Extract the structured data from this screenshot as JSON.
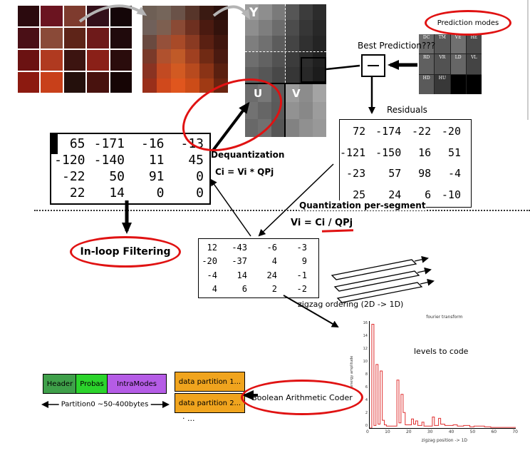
{
  "labels": {
    "prediction_modes": "Prediction modes",
    "best_prediction": "Best Prediction???",
    "residuals": "Residuals",
    "dequantization": "Dequantization",
    "dequant_formula": "Ci = Vi * QPj",
    "quant_per_segment": "Quantization per-segment",
    "quant_formula": "Vi = Ci / QPj",
    "inloop_filtering": "In-loop Filtering",
    "zigzag_ordering": "zigzag ordering  (2D -> 1D)",
    "boolean_coder": "Boolean Arithmetic Coder",
    "partition0": "Partition0  ~50-400bytes",
    "dots": "·  ...",
    "y": "Y",
    "u": "U",
    "v": "V"
  },
  "prediction_grid": {
    "cells": [
      {
        "label": "DC",
        "bg": "#6a6a6a"
      },
      {
        "label": "TM",
        "bg": "#585858"
      },
      {
        "label": "VE",
        "bg": "#707070"
      },
      {
        "label": "HE",
        "bg": "#4a4a4a"
      },
      {
        "label": "RD",
        "bg": "#606060"
      },
      {
        "label": "VR",
        "bg": "#525252"
      },
      {
        "label": "LD",
        "bg": "#666666"
      },
      {
        "label": "VL",
        "bg": "#444444"
      },
      {
        "label": "HD",
        "bg": "#5a5a5a"
      },
      {
        "label": "HU",
        "bg": "#383838"
      },
      {
        "label": "",
        "bg": "#000000"
      },
      {
        "label": "",
        "bg": "#000000"
      }
    ]
  },
  "matrices": {
    "dequant": [
      [
        65,
        -171,
        -16,
        -13
      ],
      [
        -120,
        -140,
        11,
        45
      ],
      [
        -22,
        50,
        91,
        0
      ],
      [
        22,
        14,
        0,
        0
      ]
    ],
    "residuals": [
      [
        72,
        -174,
        -22,
        -20
      ],
      [
        -121,
        -150,
        16,
        51
      ],
      [
        -23,
        57,
        98,
        -4
      ],
      [
        25,
        24,
        6,
        -10
      ]
    ],
    "quantized": [
      [
        12,
        -43,
        -6,
        -3
      ],
      [
        -20,
        -37,
        4,
        9
      ],
      [
        -4,
        14,
        24,
        -1
      ],
      [
        4,
        6,
        2,
        -2
      ]
    ]
  },
  "stream": {
    "header": "Header",
    "probas": "Probas",
    "intramodes": "IntraModes",
    "dp1": "data partition 1...",
    "dp2": "data partition 2..."
  },
  "colors": {
    "accent_red": "#e01212",
    "series_red": "#e03030",
    "header_green": "#3fa04a",
    "probas_green": "#2cd42c",
    "intramodes_purple": "#b55ce6",
    "partition_orange": "#f0a41e"
  },
  "images": {
    "photo": {
      "cols": 5,
      "colors": [
        "#2b0a0e",
        "#6b1420",
        "#7e3b2e",
        "#33101a",
        "#140608",
        "#4a0f16",
        "#8a4a38",
        "#5e2418",
        "#6e1a1a",
        "#200a0c",
        "#6b1212",
        "#b03a20",
        "#3c1410",
        "#8a2018",
        "#2a0c0c",
        "#8c1a10",
        "#c8401a",
        "#24100c",
        "#48120e",
        "#160505"
      ]
    },
    "pixelated": {
      "cols": 6,
      "colors": [
        "#6e5f55",
        "#75655a",
        "#6a5248",
        "#57352a",
        "#3a1a12",
        "#2a100c",
        "#70605a",
        "#7d5f50",
        "#8a4a35",
        "#6e3020",
        "#4a1a10",
        "#33120c",
        "#6a4a40",
        "#95503a",
        "#a84a28",
        "#8a3a22",
        "#5a2012",
        "#40160e",
        "#7a3a2a",
        "#b0512e",
        "#c05a28",
        "#a04020",
        "#702a14",
        "#4a1a10",
        "#8a3322",
        "#c24a22",
        "#d25a22",
        "#b84a1e",
        "#8a3316",
        "#5a2010",
        "#9a2f1a",
        "#d0491c",
        "#e0561e",
        "#cc4c18",
        "#a03a14",
        "#6a2410"
      ]
    },
    "yplane": {
      "cols": 6,
      "colors": [
        "#9c9c9c",
        "#8e8e8e",
        "#7a7a7a",
        "#565656",
        "#3c3c3c",
        "#2c2c2c",
        "#8e8e8e",
        "#7e7e7e",
        "#6c6c6c",
        "#4c4c4c",
        "#363636",
        "#282828",
        "#7e7e7e",
        "#707070",
        "#5c5c5c",
        "#444444",
        "#303030",
        "#242424",
        "#6e6e6e",
        "#626262",
        "#525252",
        "#3c3c3c",
        "#2c2c2c",
        "#202020",
        "#606060",
        "#565656",
        "#484848",
        "#363636",
        "#282828",
        "#1c1c1c"
      ]
    },
    "uplane": {
      "cols": 3,
      "colors": [
        "#6c6c6c",
        "#787878",
        "#5c5c5c",
        "#727272",
        "#666666",
        "#5a5a5a",
        "#686868",
        "#707070",
        "#565656"
      ]
    },
    "vplane": {
      "cols": 3,
      "colors": [
        "#9c9c9c",
        "#8c8c8c",
        "#a4a4a4",
        "#929292",
        "#888888",
        "#9c9c9c",
        "#828282",
        "#909090",
        "#989898"
      ]
    }
  },
  "chart_data": {
    "type": "line",
    "title": "fourier transform",
    "annotation": "levels to code",
    "xlabel": "zigzag position  -> 1D",
    "ylabel": "energy amplitude",
    "xlim": [
      0,
      70
    ],
    "ylim": [
      0,
      16.5
    ],
    "xticks": [
      0,
      10,
      20,
      30,
      40,
      50,
      60,
      70
    ],
    "yticks": [
      0,
      2,
      4,
      6,
      8,
      10,
      12,
      14,
      16
    ],
    "grid": false,
    "legend": "none",
    "series": [
      {
        "name": "levels",
        "color": "#e03030",
        "x": [
          1,
          2,
          3,
          4,
          5,
          6,
          7,
          8,
          13,
          14,
          15,
          16,
          17,
          20,
          21,
          22,
          23,
          25,
          26,
          30,
          31,
          33,
          34,
          36,
          40,
          42,
          45,
          48,
          50,
          55,
          58
        ],
        "y": [
          16,
          0.4,
          9.8,
          0.6,
          8.8,
          1.2,
          0.5,
          0.3,
          7.4,
          0.8,
          5.2,
          2.4,
          0.5,
          1.4,
          0.6,
          1.1,
          0.4,
          0.9,
          0.3,
          1.7,
          0.4,
          1.5,
          0.6,
          0.4,
          0.5,
          0.3,
          0.4,
          0.2,
          0.3,
          0.2,
          0.1
        ]
      }
    ]
  }
}
